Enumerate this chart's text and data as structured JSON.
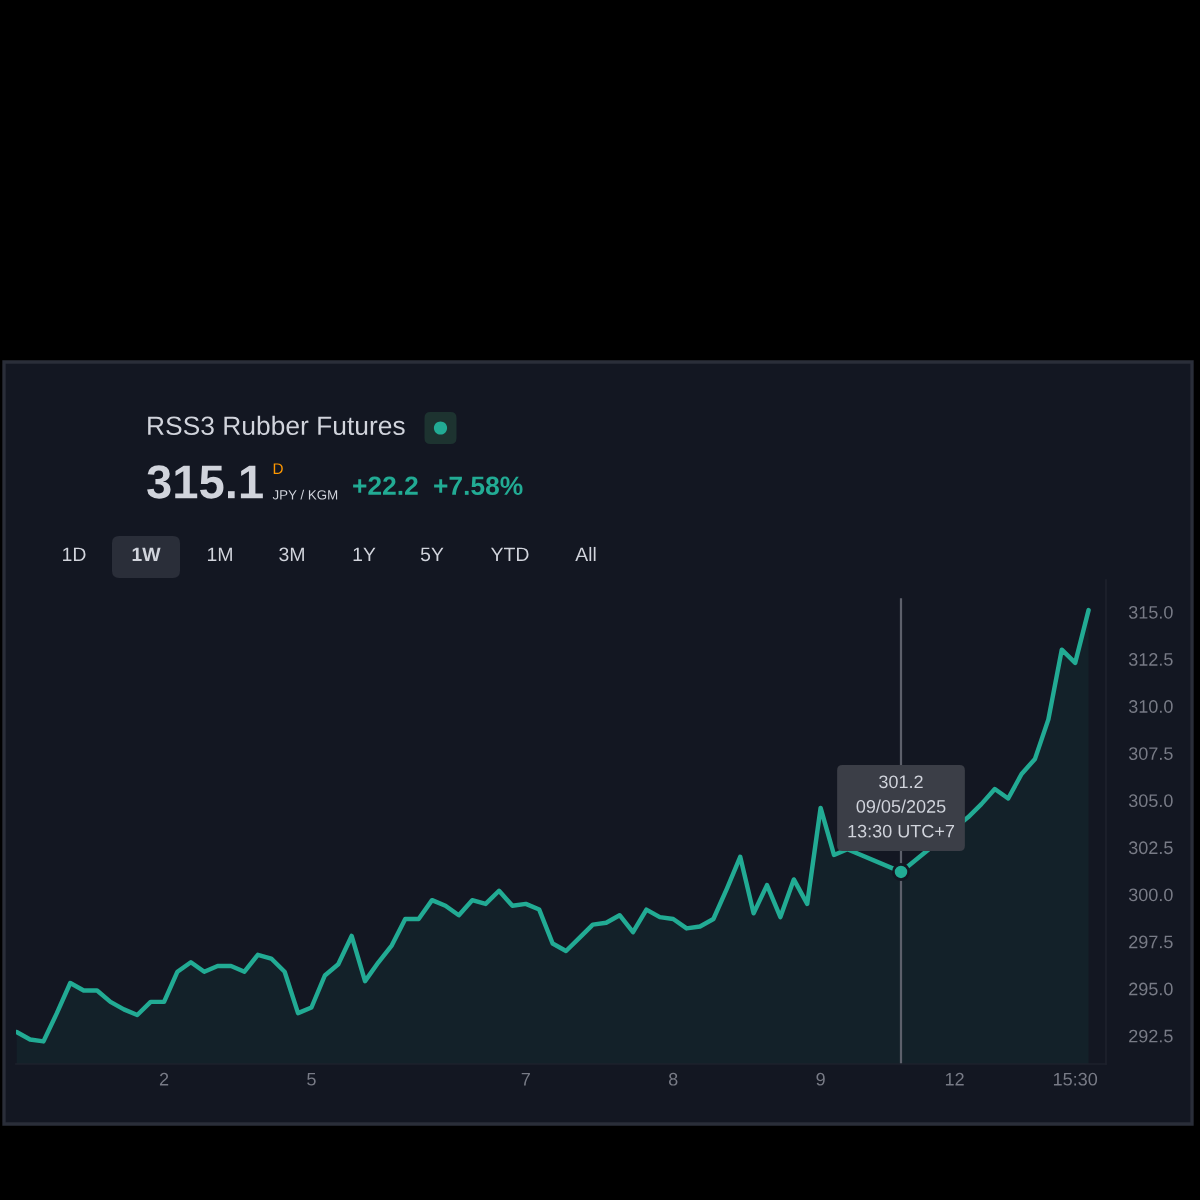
{
  "chart_data": {
    "type": "area",
    "title": "RSS3 Rubber Futures",
    "annotations": [
      "315.1",
      "D",
      "JPY / KGM",
      "+22.2",
      "+7.58%",
      "1D",
      "1W",
      "1M",
      "3M",
      "1Y",
      "5Y",
      "YTD",
      "All",
      {
        "text": "301.2\n09/05/2025\n13:30 UTC+7",
        "y": 301.2
      }
    ],
    "categories": [
      null,
      null,
      null,
      null,
      null,
      null,
      null,
      null,
      null,
      null,
      null,
      "2",
      null,
      null,
      null,
      null,
      null,
      null,
      null,
      null,
      null,
      null,
      "5",
      null,
      null,
      null,
      null,
      null,
      null,
      null,
      null,
      null,
      null,
      null,
      null,
      null,
      null,
      null,
      "7",
      null,
      null,
      null,
      null,
      null,
      null,
      null,
      null,
      null,
      null,
      "8",
      null,
      null,
      null,
      null,
      null,
      null,
      null,
      null,
      null,
      null,
      "9",
      null,
      null,
      null,
      null,
      null,
      null,
      null,
      null,
      null,
      "12",
      null,
      null,
      null,
      null,
      null,
      null,
      null,
      null,
      "15:30",
      null
    ],
    "series": [
      {
        "color": "#22ab94",
        "values": [
          292.7,
          292.3,
          292.2,
          293.7,
          295.3,
          294.9,
          294.9,
          294.3,
          293.9,
          293.6,
          294.3,
          294.3,
          295.9,
          296.4,
          295.9,
          296.2,
          296.2,
          295.9,
          296.8,
          296.6,
          295.9,
          293.7,
          294.0,
          295.7,
          296.3,
          297.8,
          295.4,
          296.4,
          297.3,
          298.7,
          298.7,
          299.7,
          299.4,
          298.9,
          299.7,
          299.5,
          300.2,
          299.4,
          299.5,
          299.2,
          297.4,
          297.0,
          297.7,
          298.4,
          298.5,
          298.9,
          298.0,
          299.2,
          298.8,
          298.7,
          298.2,
          298.3,
          298.7,
          300.3,
          302.0,
          299.0,
          300.5,
          298.8,
          300.8,
          299.5,
          304.6,
          302.1,
          302.4,
          null,
          null,
          null,
          301.2,
          null,
          null,
          null,
          null,
          304.1,
          304.8,
          305.6,
          305.1,
          306.4,
          307.2,
          309.3,
          313.0,
          312.3,
          315.1
        ]
      }
    ],
    "ylim": [
      291,
      316.7
    ],
    "yticks": [
      292.5,
      {
        "value": 295,
        "label": "295.0"
      },
      297.5,
      {
        "value": 300,
        "label": "300.0"
      },
      302.5,
      {
        "value": 305,
        "label": "305.0"
      },
      307.5,
      {
        "value": 310,
        "label": "310.0"
      },
      312.5,
      {
        "value": 315,
        "label": "315.0"
      }
    ]
  }
}
